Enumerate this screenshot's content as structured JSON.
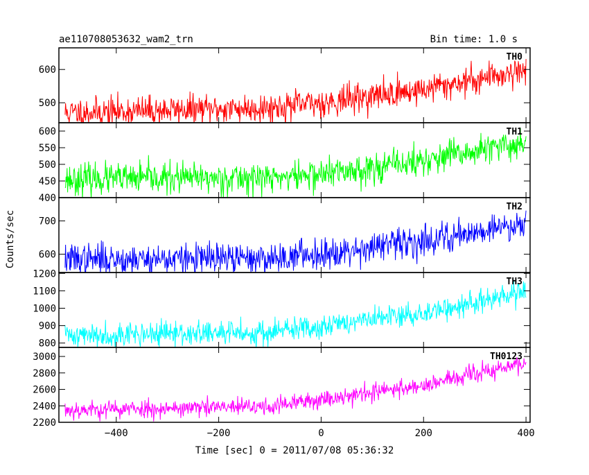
{
  "header": {
    "left": "ae110708053632_wam2_trn",
    "right": "Bin time: 1.0 s"
  },
  "chart_data": {
    "type": "line",
    "shared_x": {
      "label": "Time [sec] 0 = 2011/07/08 05:36:32",
      "range": [
        -512,
        408
      ],
      "ticks": [
        -400,
        -200,
        0,
        200,
        400
      ],
      "tick_labels": [
        "−400",
        "−200",
        "0",
        "200",
        "400"
      ]
    },
    "ylabel": "Counts/sec",
    "panels": [
      {
        "name": "TH0",
        "color": "#ff0000",
        "ylim": [
          440,
          665
        ],
        "yticks": [
          500,
          600
        ],
        "ytick_labels": [
          "500",
          "600"
        ],
        "trend": {
          "t": [
            -500,
            -100,
            0,
            200,
            400
          ],
          "y": [
            470,
            485,
            500,
            540,
            600
          ]
        },
        "noise": 22,
        "seed": 11
      },
      {
        "name": "TH1",
        "color": "#00ff00",
        "ylim": [
          400,
          625
        ],
        "yticks": [
          400,
          450,
          500,
          550,
          600
        ],
        "ytick_labels": [
          "400",
          "450",
          "500",
          "550",
          "600"
        ],
        "trend": {
          "t": [
            -500,
            -100,
            0,
            200,
            400
          ],
          "y": [
            455,
            460,
            470,
            510,
            565
          ]
        },
        "noise": 23,
        "seed": 23
      },
      {
        "name": "TH2",
        "color": "#0000ff",
        "ylim": [
          545,
          770
        ],
        "yticks": [
          600,
          700
        ],
        "ytick_labels": [
          "600",
          "700"
        ],
        "trend": {
          "t": [
            -500,
            -100,
            0,
            200,
            400
          ],
          "y": [
            585,
            587,
            603,
            640,
            695
          ]
        },
        "noise": 23,
        "seed": 37
      },
      {
        "name": "TH3",
        "color": "#00ffff",
        "ylim": [
          775,
          1205
        ],
        "yticks": [
          800,
          900,
          1000,
          1100,
          1200
        ],
        "ytick_labels": [
          "800",
          "900",
          "1000",
          "1100",
          "1200"
        ],
        "trend": {
          "t": [
            -500,
            -100,
            0,
            200,
            400
          ],
          "y": [
            845,
            860,
            900,
            970,
            1090
          ]
        },
        "noise": 35,
        "seed": 41
      },
      {
        "name": "TH0123",
        "color": "#ff00ff",
        "ylim": [
          2200,
          3110
        ],
        "yticks": [
          2200,
          2400,
          2600,
          2800,
          3000
        ],
        "ytick_labels": [
          "2200",
          "2400",
          "2600",
          "2800",
          "3000"
        ],
        "trend": {
          "t": [
            -500,
            -100,
            0,
            200,
            400
          ],
          "y": [
            2350,
            2390,
            2480,
            2650,
            2920
          ]
        },
        "noise": 55,
        "seed": 53
      }
    ]
  }
}
